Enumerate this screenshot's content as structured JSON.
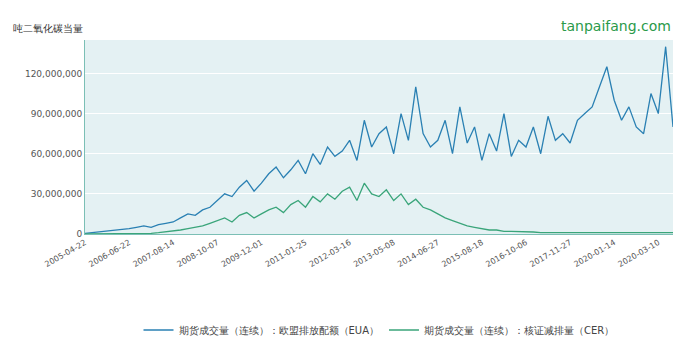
{
  "chart_data": {
    "type": "line",
    "y_label": "吨二氧化碳当量",
    "annotations": [
      "tanpaifang.com"
    ],
    "categories": [
      "2005-04-22",
      null,
      null,
      null,
      null,
      null,
      "2006-06-22",
      null,
      null,
      null,
      null,
      null,
      "2007-08-14",
      null,
      null,
      null,
      null,
      null,
      "2008-10-07",
      null,
      null,
      null,
      null,
      null,
      "2009-12-01",
      null,
      null,
      null,
      null,
      null,
      "2011-01-25",
      null,
      null,
      null,
      null,
      null,
      "2012-03-16",
      null,
      null,
      null,
      null,
      null,
      "2013-05-08",
      null,
      null,
      null,
      null,
      null,
      "2014-06-27",
      null,
      null,
      null,
      null,
      null,
      "2015-08-18",
      null,
      null,
      null,
      null,
      null,
      "2016-10-06",
      null,
      null,
      null,
      null,
      null,
      "2017-11-27",
      null,
      null,
      null,
      null,
      null,
      "2020-01-14",
      null,
      null,
      null,
      null,
      null,
      "2020-03-10",
      null,
      null
    ],
    "series": [
      {
        "name": "期货成交量（连续）：欧盟排放配额（EUA）",
        "color": "#2a80b3",
        "values": [
          500000.0,
          1000000.0,
          1500000.0,
          2000000.0,
          3000000.0,
          3000000.0,
          4000000.0,
          5000000.0,
          6000000.0,
          5000000.0,
          7000000.0,
          8000000.0,
          9000000.0,
          12000000.0,
          15000000.0,
          14000000.0,
          18000000.0,
          20000000.0,
          25000000.0,
          30000000.0,
          28000000.0,
          35000000.0,
          40000000.0,
          32000000.0,
          38000000.0,
          45000000.0,
          50000000.0,
          42000000.0,
          48000000.0,
          55000000.0,
          45000000.0,
          60000000.0,
          52000000.0,
          65000000.0,
          58000000.0,
          62000000.0,
          70000000.0,
          55000000.0,
          85000000.0,
          65000000.0,
          75000000.0,
          80000000.0,
          60000000.0,
          90000000.0,
          70000000.0,
          110000000.0,
          75000000.0,
          65000000.0,
          70000000.0,
          85000000.0,
          60000000.0,
          95000000.0,
          68000000.0,
          80000000.0,
          55000000.0,
          75000000.0,
          62000000.0,
          90000000.0,
          58000000.0,
          70000000.0,
          65000000.0,
          80000000.0,
          60000000.0,
          88000000.0,
          70000000.0,
          75000000.0,
          68000000.0,
          85000000.0,
          90000000.0,
          95000000.0,
          110000000.0,
          125000000.0,
          100000000.0,
          85000000.0,
          95000000.0,
          80000000.0,
          75000000.0,
          105000000.0,
          90000000.0,
          140000000.0,
          80000000.0
        ]
      },
      {
        "name": "期货成交量（连续）：核证减排量（CER）",
        "color": "#3aa57a",
        "values": [
          0,
          0,
          0,
          0,
          0,
          0,
          0,
          0,
          0,
          500000.0,
          1000000.0,
          1500000.0,
          2000000.0,
          3000000.0,
          4000000.0,
          5000000.0,
          6000000.0,
          8000000.0,
          10000000.0,
          12000000.0,
          9000000.0,
          14000000.0,
          16000000.0,
          12000000.0,
          15000000.0,
          18000000.0,
          20000000.0,
          16000000.0,
          22000000.0,
          25000000.0,
          20000000.0,
          28000000.0,
          24000000.0,
          30000000.0,
          26000000.0,
          32000000.0,
          35000000.0,
          25000000.0,
          38000000.0,
          30000000.0,
          28000000.0,
          33000000.0,
          25000000.0,
          30000000.0,
          22000000.0,
          26000000.0,
          20000000.0,
          18000000.0,
          15000000.0,
          12000000.0,
          10000000.0,
          8000000.0,
          6000000.0,
          5000000.0,
          4000000.0,
          3000000.0,
          3000000.0,
          2000000.0,
          2000000.0,
          2000000.0,
          1500000.0,
          1500000.0,
          1000000.0,
          1000000.0,
          1000000.0,
          1000000.0,
          1000000.0,
          1000000.0,
          1000000.0,
          1000000.0,
          1000000.0,
          1000000.0,
          1000000.0,
          1000000.0,
          1000000.0,
          1000000.0,
          1000000.0,
          1000000.0,
          1000000.0,
          1000000.0,
          1000000.0
        ]
      }
    ],
    "ylim": [
      0,
      145000000
    ],
    "yticks": [
      0,
      {
        "value": 30000000,
        "label": "30,000,000"
      },
      {
        "value": 60000000,
        "label": "60,000,000"
      },
      {
        "value": 90000000,
        "label": "90,000,000"
      },
      {
        "value": 120000000,
        "label": "120,000,000"
      }
    ],
    "grid": true,
    "legend": "bottom"
  }
}
